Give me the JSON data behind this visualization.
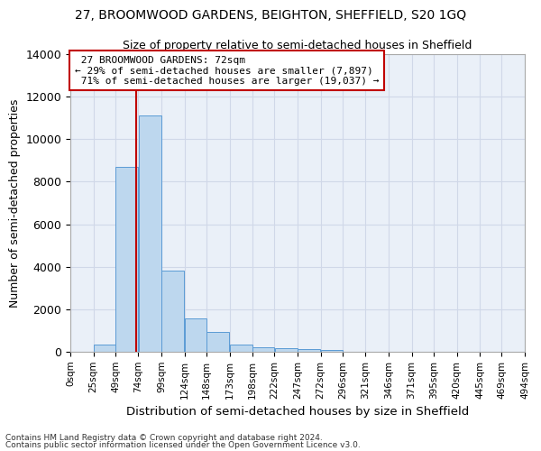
{
  "title1": "27, BROOMWOOD GARDENS, BEIGHTON, SHEFFIELD, S20 1GQ",
  "title2": "Size of property relative to semi-detached houses in Sheffield",
  "xlabel": "Distribution of semi-detached houses by size in Sheffield",
  "ylabel": "Number of semi-detached properties",
  "property_label": "27 BROOMWOOD GARDENS: 72sqm",
  "pct_smaller": 29,
  "count_smaller": 7897,
  "pct_larger": 71,
  "count_larger": 19037,
  "bin_labels": [
    "0sqm",
    "25sqm",
    "49sqm",
    "74sqm",
    "99sqm",
    "124sqm",
    "148sqm",
    "173sqm",
    "198sqm",
    "222sqm",
    "247sqm",
    "272sqm",
    "296sqm",
    "321sqm",
    "346sqm",
    "371sqm",
    "395sqm",
    "420sqm",
    "445sqm",
    "469sqm",
    "494sqm"
  ],
  "bin_edges": [
    0,
    25,
    49,
    74,
    99,
    124,
    148,
    173,
    198,
    222,
    247,
    272,
    296,
    321,
    346,
    371,
    395,
    420,
    445,
    469,
    494
  ],
  "bar_heights": [
    0,
    350,
    8700,
    11100,
    3800,
    1550,
    950,
    350,
    230,
    160,
    130,
    100,
    0,
    0,
    0,
    0,
    0,
    0,
    0,
    0
  ],
  "bar_color": "#bdd7ee",
  "bar_edge_color": "#5b9bd5",
  "vline_x": 72,
  "vline_color": "#c00000",
  "ylim": [
    0,
    14000
  ],
  "yticks": [
    0,
    2000,
    4000,
    6000,
    8000,
    10000,
    12000,
    14000
  ],
  "annotation_box_color": "#c00000",
  "grid_color": "#d0d8e8",
  "bg_color": "#eaf0f8",
  "footer1": "Contains HM Land Registry data © Crown copyright and database right 2024.",
  "footer2": "Contains public sector information licensed under the Open Government Licence v3.0."
}
